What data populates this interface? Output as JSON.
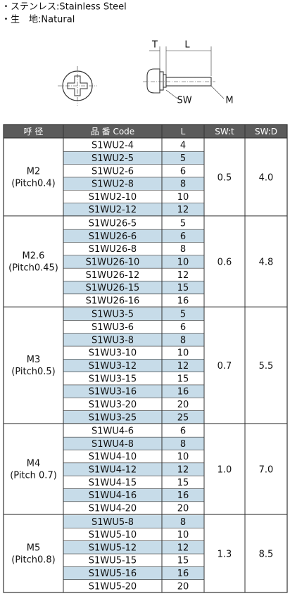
{
  "header": {
    "lines": [
      "・ステンレス:Stainless Steel",
      "・生　地:Natural"
    ]
  },
  "diagram": {
    "labels": {
      "t": "T",
      "l": "L",
      "sw": "SW",
      "m": "M"
    }
  },
  "table": {
    "columns": [
      "呼 径",
      "品 番 Code",
      "L",
      "SW:t",
      "SW:D"
    ],
    "groups": [
      {
        "size": "M2",
        "pitch": "(Pitch0.4)",
        "t": "0.5",
        "d": "4.0",
        "rows": [
          [
            "S1WU2-4",
            4
          ],
          [
            "S1WU2-5",
            5
          ],
          [
            "S1WU2-6",
            6
          ],
          [
            "S1WU2-8",
            8
          ],
          [
            "S1WU2-10",
            10
          ],
          [
            "S1WU2-12",
            12
          ]
        ]
      },
      {
        "size": "M2.6",
        "pitch": "(Pitch0.45)",
        "t": "0.6",
        "d": "4.8",
        "rows": [
          [
            "S1WU26-5",
            5
          ],
          [
            "S1WU26-6",
            6
          ],
          [
            "S1WU26-8",
            8
          ],
          [
            "S1WU26-10",
            10
          ],
          [
            "S1WU26-12",
            12
          ],
          [
            "S1WU26-15",
            15
          ],
          [
            "S1WU26-16",
            16
          ]
        ]
      },
      {
        "size": "M3",
        "pitch": "(Pitch0.5)",
        "t": "0.7",
        "d": "5.5",
        "rows": [
          [
            "S1WU3-5",
            5
          ],
          [
            "S1WU3-6",
            6
          ],
          [
            "S1WU3-8",
            8
          ],
          [
            "S1WU3-10",
            10
          ],
          [
            "S1WU3-12",
            12
          ],
          [
            "S1WU3-15",
            15
          ],
          [
            "S1WU3-16",
            16
          ],
          [
            "S1WU3-20",
            20
          ],
          [
            "S1WU3-25",
            25
          ]
        ]
      },
      {
        "size": "M4",
        "pitch": "(Pitch 0.7)",
        "t": "1.0",
        "d": "7.0",
        "rows": [
          [
            "S1WU4-6",
            6
          ],
          [
            "S1WU4-8",
            8
          ],
          [
            "S1WU4-10",
            10
          ],
          [
            "S1WU4-12",
            12
          ],
          [
            "S1WU4-15",
            15
          ],
          [
            "S1WU4-16",
            16
          ],
          [
            "S1WU4-20",
            20
          ]
        ]
      },
      {
        "size": "M5",
        "pitch": "(Pitch0.8)",
        "t": "1.3",
        "d": "8.5",
        "rows": [
          [
            "S1WU5-8",
            8
          ],
          [
            "S1WU5-10",
            10
          ],
          [
            "S1WU5-12",
            12
          ],
          [
            "S1WU5-15",
            15
          ],
          [
            "S1WU5-16",
            16
          ],
          [
            "S1WU5-20",
            20
          ]
        ]
      }
    ]
  }
}
